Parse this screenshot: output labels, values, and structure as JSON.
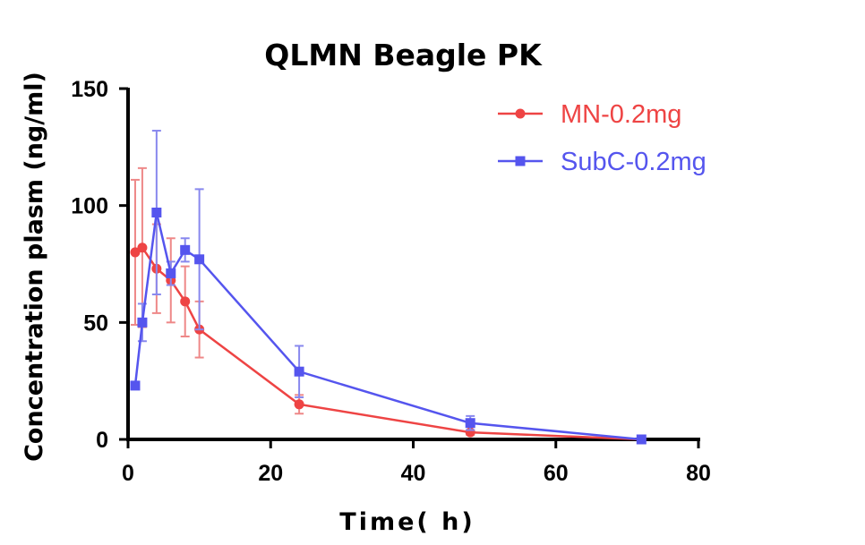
{
  "chart_data": {
    "type": "line",
    "title": "QLMN Beagle PK",
    "xlabel": "Time( h)",
    "ylabel": "Concentration plasm (ng/ml)",
    "xlim": [
      0,
      80
    ],
    "ylim": [
      0,
      150
    ],
    "xticks": [
      0,
      20,
      40,
      60,
      80
    ],
    "yticks": [
      0,
      50,
      100,
      150
    ],
    "grid": false,
    "legend_position": "top-right",
    "series": [
      {
        "name": "MN-0.2mg",
        "color": "#ee4444",
        "marker": "circle",
        "x": [
          1,
          2,
          4,
          6,
          8,
          10,
          24,
          48,
          72
        ],
        "y": [
          80,
          82,
          73,
          68,
          59,
          47,
          15,
          3,
          0
        ],
        "error": [
          31,
          34,
          19,
          18,
          15,
          12,
          4,
          1,
          0
        ]
      },
      {
        "name": "SubC-0.2mg",
        "color": "#5555ee",
        "marker": "square",
        "x": [
          1,
          2,
          4,
          6,
          8,
          10,
          24,
          48,
          72
        ],
        "y": [
          23,
          50,
          97,
          71,
          81,
          77,
          29,
          7,
          0
        ],
        "error": [
          0,
          8,
          35,
          5,
          5,
          30,
          11,
          3,
          0
        ]
      }
    ]
  }
}
